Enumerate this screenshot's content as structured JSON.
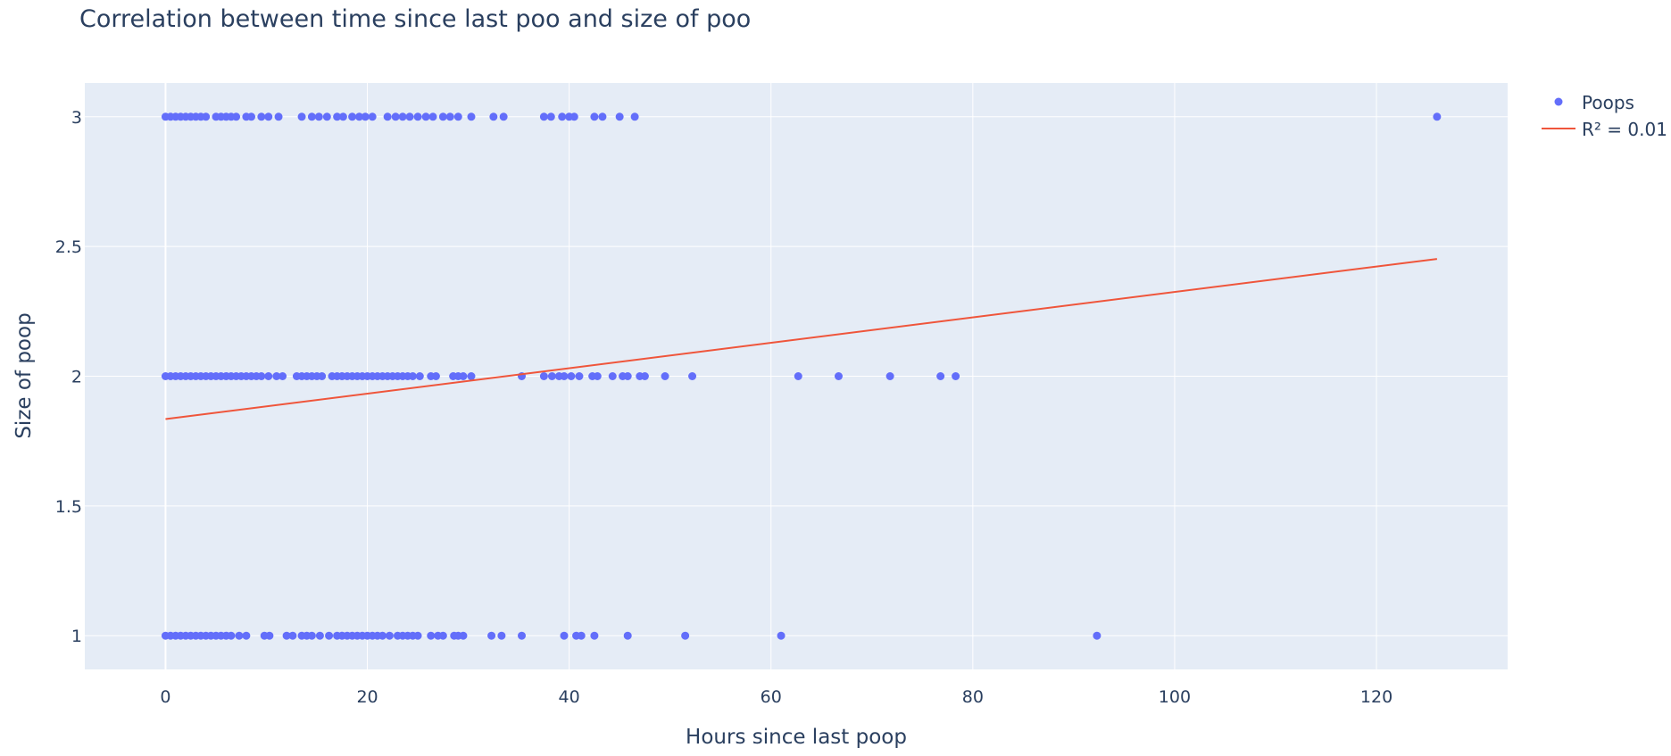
{
  "chart_data": {
    "type": "scatter",
    "title": "Correlation between time since last poo and size of poo",
    "xlabel": "Hours since last poop",
    "ylabel": "Size of poop",
    "xlim": [
      -8,
      133
    ],
    "ylim": [
      0.87,
      3.13
    ],
    "x_ticks": [
      0,
      20,
      40,
      60,
      80,
      100,
      120
    ],
    "y_ticks": [
      1,
      1.5,
      2,
      2.5,
      3
    ],
    "grid": true,
    "legend_position": "top-right",
    "colors": {
      "background": "#e5ecf6",
      "points": "#636efa",
      "trend": "#ef553b"
    },
    "series": [
      {
        "name": "Poops",
        "kind": "markers",
        "points": [
          [
            0,
            3
          ],
          [
            0.5,
            3
          ],
          [
            1,
            3
          ],
          [
            1.5,
            3
          ],
          [
            2,
            3
          ],
          [
            2.5,
            3
          ],
          [
            3,
            3
          ],
          [
            3.5,
            3
          ],
          [
            4,
            3
          ],
          [
            5,
            3
          ],
          [
            5.5,
            3
          ],
          [
            6,
            3
          ],
          [
            6.5,
            3
          ],
          [
            7,
            3
          ],
          [
            8,
            3
          ],
          [
            8.5,
            3
          ],
          [
            9.5,
            3
          ],
          [
            10.2,
            3
          ],
          [
            11.2,
            3
          ],
          [
            13.5,
            3
          ],
          [
            14.5,
            3
          ],
          [
            15.2,
            3
          ],
          [
            16,
            3
          ],
          [
            17,
            3
          ],
          [
            17.6,
            3
          ],
          [
            18.5,
            3
          ],
          [
            19.2,
            3
          ],
          [
            19.8,
            3
          ],
          [
            20.5,
            3
          ],
          [
            22,
            3
          ],
          [
            22.8,
            3
          ],
          [
            23.5,
            3
          ],
          [
            24.2,
            3
          ],
          [
            25,
            3
          ],
          [
            25.8,
            3
          ],
          [
            26.5,
            3
          ],
          [
            27.5,
            3
          ],
          [
            28.2,
            3
          ],
          [
            29,
            3
          ],
          [
            30.3,
            3
          ],
          [
            32.5,
            3
          ],
          [
            33.5,
            3
          ],
          [
            37.5,
            3
          ],
          [
            38.2,
            3
          ],
          [
            39.3,
            3
          ],
          [
            40,
            3
          ],
          [
            40.5,
            3
          ],
          [
            42.5,
            3
          ],
          [
            43.3,
            3
          ],
          [
            45,
            3
          ],
          [
            46.5,
            3
          ],
          [
            126,
            3
          ],
          [
            0,
            2
          ],
          [
            0.5,
            2
          ],
          [
            1,
            2
          ],
          [
            1.5,
            2
          ],
          [
            2,
            2
          ],
          [
            2.5,
            2
          ],
          [
            3,
            2
          ],
          [
            3.5,
            2
          ],
          [
            4,
            2
          ],
          [
            4.5,
            2
          ],
          [
            5,
            2
          ],
          [
            5.5,
            2
          ],
          [
            6,
            2
          ],
          [
            6.5,
            2
          ],
          [
            7,
            2
          ],
          [
            7.5,
            2
          ],
          [
            8,
            2
          ],
          [
            8.5,
            2
          ],
          [
            9,
            2
          ],
          [
            9.5,
            2
          ],
          [
            10.2,
            2
          ],
          [
            11,
            2
          ],
          [
            11.6,
            2
          ],
          [
            13,
            2
          ],
          [
            13.5,
            2
          ],
          [
            14,
            2
          ],
          [
            14.5,
            2
          ],
          [
            15,
            2
          ],
          [
            15.5,
            2
          ],
          [
            16.5,
            2
          ],
          [
            17,
            2
          ],
          [
            17.5,
            2
          ],
          [
            18,
            2
          ],
          [
            18.5,
            2
          ],
          [
            19,
            2
          ],
          [
            19.5,
            2
          ],
          [
            20,
            2
          ],
          [
            20.5,
            2
          ],
          [
            21,
            2
          ],
          [
            21.5,
            2
          ],
          [
            22,
            2
          ],
          [
            22.5,
            2
          ],
          [
            23,
            2
          ],
          [
            23.5,
            2
          ],
          [
            24,
            2
          ],
          [
            24.5,
            2
          ],
          [
            25.2,
            2
          ],
          [
            26.3,
            2
          ],
          [
            26.8,
            2
          ],
          [
            28.5,
            2
          ],
          [
            29,
            2
          ],
          [
            29.5,
            2
          ],
          [
            30.3,
            2
          ],
          [
            35.3,
            2
          ],
          [
            37.5,
            2
          ],
          [
            38.3,
            2
          ],
          [
            39,
            2
          ],
          [
            39.5,
            2
          ],
          [
            40.2,
            2
          ],
          [
            41,
            2
          ],
          [
            42.3,
            2
          ],
          [
            42.8,
            2
          ],
          [
            44.3,
            2
          ],
          [
            45.3,
            2
          ],
          [
            45.8,
            2
          ],
          [
            47,
            2
          ],
          [
            47.5,
            2
          ],
          [
            49.5,
            2
          ],
          [
            52.2,
            2
          ],
          [
            62.7,
            2
          ],
          [
            66.7,
            2
          ],
          [
            71.8,
            2
          ],
          [
            76.8,
            2
          ],
          [
            78.3,
            2
          ],
          [
            0,
            1
          ],
          [
            0.5,
            1
          ],
          [
            1,
            1
          ],
          [
            1.5,
            1
          ],
          [
            2,
            1
          ],
          [
            2.5,
            1
          ],
          [
            3,
            1
          ],
          [
            3.5,
            1
          ],
          [
            4,
            1
          ],
          [
            4.5,
            1
          ],
          [
            5,
            1
          ],
          [
            5.5,
            1
          ],
          [
            6,
            1
          ],
          [
            6.5,
            1
          ],
          [
            7.3,
            1
          ],
          [
            8,
            1
          ],
          [
            9.8,
            1
          ],
          [
            10.3,
            1
          ],
          [
            12,
            1
          ],
          [
            12.6,
            1
          ],
          [
            13.5,
            1
          ],
          [
            14,
            1
          ],
          [
            14.5,
            1
          ],
          [
            15.3,
            1
          ],
          [
            16.2,
            1
          ],
          [
            17,
            1
          ],
          [
            17.5,
            1
          ],
          [
            18,
            1
          ],
          [
            18.5,
            1
          ],
          [
            19,
            1
          ],
          [
            19.5,
            1
          ],
          [
            20,
            1
          ],
          [
            20.5,
            1
          ],
          [
            21,
            1
          ],
          [
            21.5,
            1
          ],
          [
            22.2,
            1
          ],
          [
            23,
            1
          ],
          [
            23.5,
            1
          ],
          [
            24,
            1
          ],
          [
            24.5,
            1
          ],
          [
            25,
            1
          ],
          [
            26.3,
            1
          ],
          [
            27,
            1
          ],
          [
            27.5,
            1
          ],
          [
            28.6,
            1
          ],
          [
            29,
            1
          ],
          [
            29.5,
            1
          ],
          [
            32.3,
            1
          ],
          [
            33.3,
            1
          ],
          [
            35.3,
            1
          ],
          [
            39.5,
            1
          ],
          [
            40.7,
            1
          ],
          [
            41.2,
            1
          ],
          [
            42.5,
            1
          ],
          [
            45.8,
            1
          ],
          [
            51.5,
            1
          ],
          [
            61,
            1
          ],
          [
            92.3,
            1
          ]
        ]
      },
      {
        "name": "R² = 0.01",
        "kind": "line",
        "points": [
          [
            0,
            1.835
          ],
          [
            126,
            2.452
          ]
        ]
      }
    ]
  }
}
